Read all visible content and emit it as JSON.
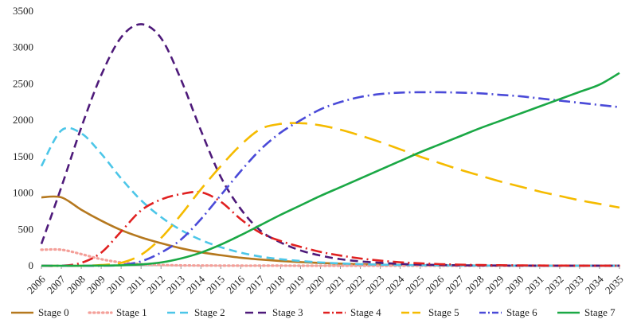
{
  "chart_data": {
    "type": "line",
    "title": "",
    "xlabel": "",
    "ylabel": "",
    "x": [
      2006,
      2007,
      2008,
      2009,
      2010,
      2011,
      2012,
      2013,
      2014,
      2015,
      2016,
      2017,
      2018,
      2019,
      2020,
      2021,
      2022,
      2023,
      2024,
      2025,
      2026,
      2027,
      2028,
      2029,
      2030,
      2031,
      2032,
      2033,
      2034,
      2035
    ],
    "ylim": [
      0,
      3500
    ],
    "yticks": [
      0,
      500,
      1000,
      1500,
      2000,
      2500,
      3000,
      3500
    ],
    "grid": false,
    "legend_position": "bottom",
    "series": [
      {
        "name": "Stage 0",
        "color": "#b5781e",
        "dash": "solid",
        "values": [
          940,
          940,
          770,
          620,
          490,
          390,
          310,
          240,
          185,
          145,
          110,
          85,
          65,
          50,
          38,
          28,
          20,
          15,
          10,
          8,
          5,
          4,
          3,
          2,
          2,
          1,
          1,
          1,
          1,
          1
        ]
      },
      {
        "name": "Stage 1",
        "color": "#f4a09a",
        "dash": "dotted",
        "values": [
          220,
          220,
          160,
          90,
          45,
          22,
          10,
          5,
          3,
          2,
          1,
          1,
          1,
          0,
          0,
          0,
          0,
          0,
          0,
          0,
          0,
          0,
          0,
          0,
          0,
          0,
          0,
          0,
          0,
          0
        ]
      },
      {
        "name": "Stage 2",
        "color": "#4cc6e8",
        "dash": "dash",
        "values": [
          1370,
          1860,
          1820,
          1540,
          1200,
          900,
          670,
          490,
          355,
          255,
          180,
          125,
          90,
          65,
          45,
          32,
          22,
          15,
          10,
          7,
          5,
          3,
          2,
          2,
          1,
          1,
          1,
          1,
          1,
          1
        ]
      },
      {
        "name": "Stage 3",
        "color": "#4e1a7a",
        "dash": "dash",
        "values": [
          300,
          1080,
          1900,
          2620,
          3140,
          3320,
          3130,
          2560,
          1860,
          1220,
          780,
          480,
          320,
          210,
          140,
          90,
          60,
          40,
          25,
          15,
          10,
          6,
          4,
          3,
          2,
          1,
          1,
          1,
          1,
          1
        ]
      },
      {
        "name": "Stage 4",
        "color": "#e02020",
        "dash": "dashdot",
        "values": [
          0,
          0,
          40,
          180,
          470,
          760,
          910,
          985,
          1010,
          880,
          640,
          450,
          340,
          260,
          190,
          140,
          100,
          70,
          48,
          33,
          22,
          15,
          10,
          7,
          5,
          3,
          2,
          1,
          1,
          1
        ]
      },
      {
        "name": "Stage 5",
        "color": "#f5bb00",
        "dash": "longdash",
        "values": [
          0,
          0,
          0,
          10,
          40,
          150,
          380,
          700,
          1050,
          1370,
          1660,
          1880,
          1950,
          1960,
          1930,
          1870,
          1790,
          1700,
          1600,
          1500,
          1410,
          1320,
          1240,
          1160,
          1090,
          1020,
          960,
          900,
          850,
          800
        ]
      },
      {
        "name": "Stage 6",
        "color": "#4a4ad8",
        "dash": "dashdot",
        "values": [
          0,
          0,
          0,
          0,
          10,
          60,
          180,
          360,
          640,
          970,
          1300,
          1600,
          1830,
          2000,
          2150,
          2250,
          2320,
          2360,
          2380,
          2385,
          2385,
          2380,
          2370,
          2350,
          2330,
          2300,
          2270,
          2240,
          2210,
          2180
        ]
      },
      {
        "name": "Stage 7",
        "color": "#1aa845",
        "dash": "solid",
        "values": [
          0,
          0,
          0,
          2,
          6,
          18,
          45,
          100,
          180,
          290,
          420,
          560,
          700,
          830,
          960,
          1080,
          1200,
          1320,
          1440,
          1560,
          1670,
          1780,
          1890,
          1990,
          2090,
          2190,
          2290,
          2390,
          2490,
          2650
        ]
      }
    ]
  }
}
